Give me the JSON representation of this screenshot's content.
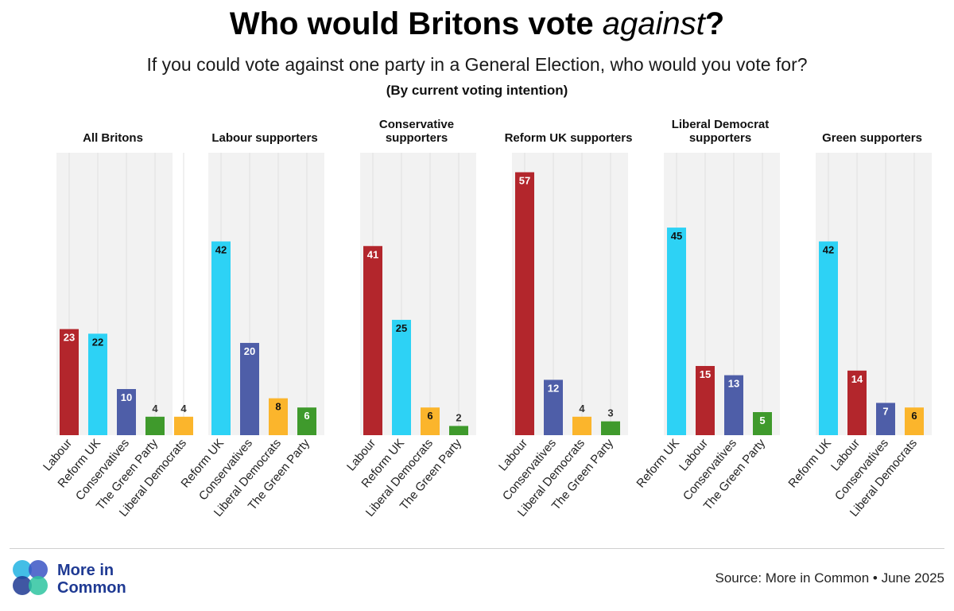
{
  "header": {
    "title_main": "Who would Britons vote ",
    "title_emph": "against",
    "title_end": "?",
    "subtitle": "If you could vote against one party in a General Election, who would you vote for?",
    "note": "(By current voting intention)"
  },
  "colors": {
    "Labour": "#b3262c",
    "Reform UK": "#2dd2f5",
    "Conservatives": "#4e5ea8",
    "The Green Party": "#3f9a2c",
    "Liberal Democrats": "#fbb52c",
    "panel_bg": "#f2f2f2",
    "grid": "#e0e0e0"
  },
  "chart_data": [
    {
      "type": "bar",
      "title": "All Britons",
      "categories": [
        "Labour",
        "Reform UK",
        "Conservatives",
        "The Green Party",
        "Liberal Democrats"
      ],
      "values": [
        23,
        22,
        10,
        4,
        4
      ],
      "ylim": [
        0,
        60
      ]
    },
    {
      "type": "bar",
      "title": "Labour supporters",
      "categories": [
        "Reform UK",
        "Conservatives",
        "Liberal Democrats",
        "The Green Party"
      ],
      "values": [
        42,
        20,
        8,
        6
      ],
      "ylim": [
        0,
        60
      ]
    },
    {
      "type": "bar",
      "title": "Conservative supporters",
      "categories": [
        "Labour",
        "Reform UK",
        "Liberal Democrats",
        "The Green Party"
      ],
      "values": [
        41,
        25,
        6,
        2
      ],
      "ylim": [
        0,
        60
      ]
    },
    {
      "type": "bar",
      "title": "Reform UK supporters",
      "categories": [
        "Labour",
        "Conservatives",
        "Liberal Democrats",
        "The Green Party"
      ],
      "values": [
        57,
        12,
        4,
        3
      ],
      "ylim": [
        0,
        60
      ]
    },
    {
      "type": "bar",
      "title": "Liberal Democrat supporters",
      "categories": [
        "Reform UK",
        "Labour",
        "Conservatives",
        "The Green Party"
      ],
      "values": [
        45,
        15,
        13,
        5
      ],
      "ylim": [
        0,
        60
      ]
    },
    {
      "type": "bar",
      "title": "Green supporters",
      "categories": [
        "Reform UK",
        "Labour",
        "Conservatives",
        "Liberal Democrats"
      ],
      "values": [
        42,
        14,
        7,
        6
      ],
      "ylim": [
        0,
        60
      ]
    }
  ],
  "footer": {
    "logo_line1": "More in",
    "logo_line2": "Common",
    "source": "Source: More in Common • June 2025"
  }
}
